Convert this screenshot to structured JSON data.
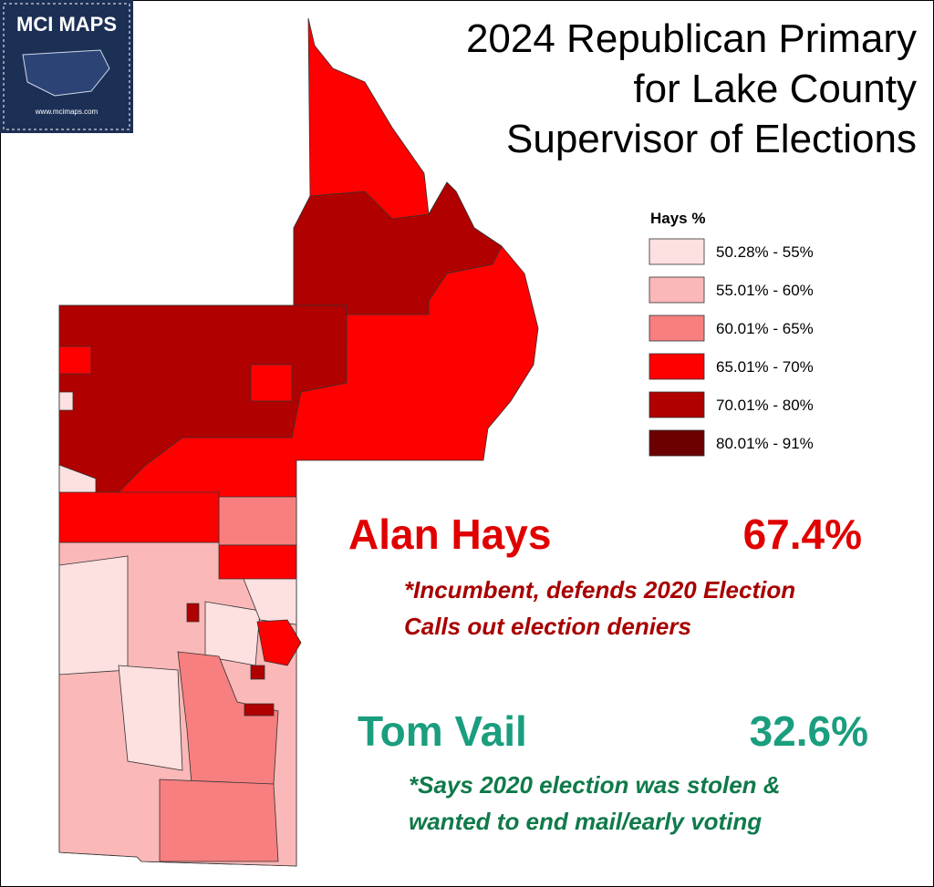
{
  "logo": {
    "title": "MCI MAPS",
    "url": "www.mcimaps.com"
  },
  "title": [
    "2024 Republican Primary",
    "for Lake County",
    "Supervisor of Elections"
  ],
  "legend": {
    "title": "Hays %",
    "items": [
      {
        "label": "50.28% - 55%",
        "color": "#fde0e0"
      },
      {
        "label": "55.01% - 60%",
        "color": "#fbb8b8"
      },
      {
        "label": "60.01% - 65%",
        "color": "#f77f7f"
      },
      {
        "label": "65.01% - 70%",
        "color": "#ff0000"
      },
      {
        "label": "70.01% - 80%",
        "color": "#b00000"
      },
      {
        "label": "80.01% - 91%",
        "color": "#6b0000"
      }
    ]
  },
  "candidates": [
    {
      "name": "Alan Hays",
      "share": "67.4%",
      "note": [
        "*Incumbent, defends 2020 Election",
        "Calls out election deniers"
      ]
    },
    {
      "name": "Tom Vail",
      "share": "32.6%",
      "note": [
        "*Says 2020 election was stolen &",
        "wanted to end mail/early voting"
      ]
    }
  ]
}
